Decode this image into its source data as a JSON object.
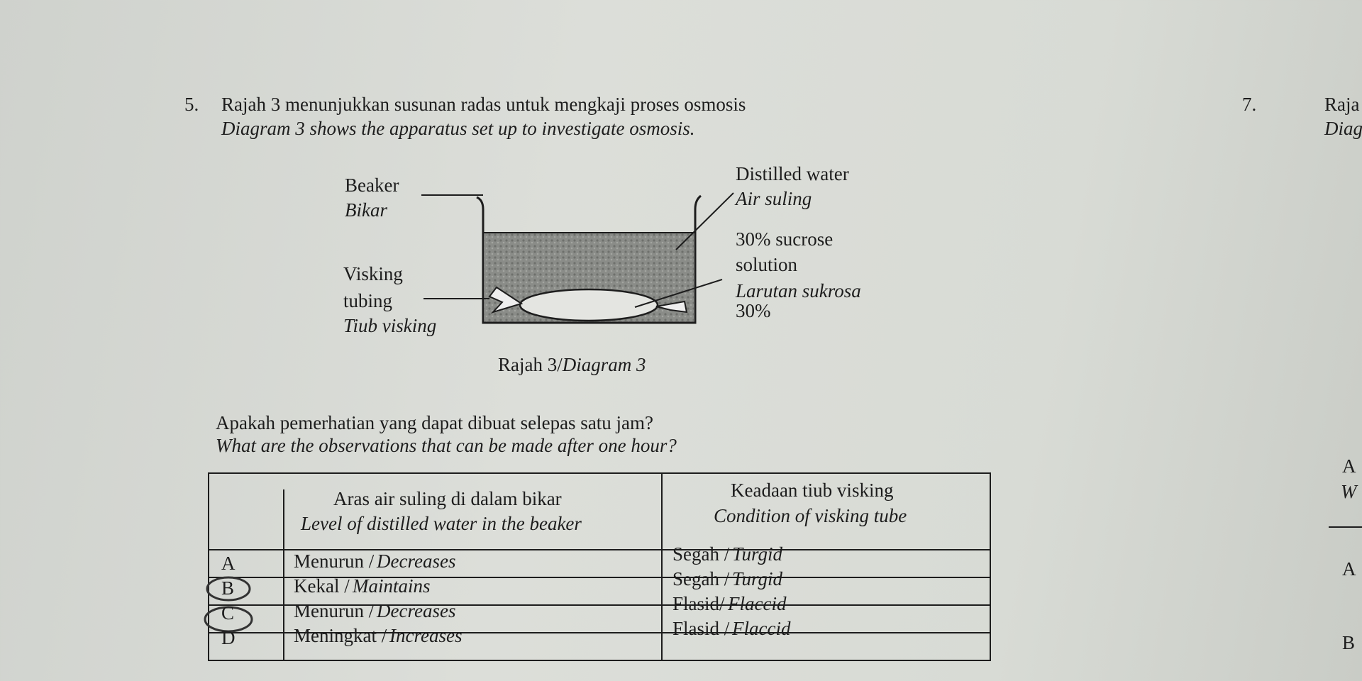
{
  "question": {
    "number": "5.",
    "line_ms": "Rajah 3 menunjukkan susunan radas untuk mengkaji proses osmosis",
    "line_en": "Diagram 3 shows the apparatus set up to investigate osmosis."
  },
  "diagram": {
    "beaker_en": "Beaker",
    "beaker_ms": "Bikar",
    "tubing_en_1": "Visking",
    "tubing_en_2": "tubing",
    "tubing_ms": "Tiub visking",
    "water_en": "Distilled water",
    "water_ms": "Air suling",
    "sucrose_en_1": "30% sucrose",
    "sucrose_en_2": "solution",
    "sucrose_ms_1": "Larutan sukrosa",
    "sucrose_ms_2": "30%",
    "caption_ms": "Rajah 3/",
    "caption_en": "Diagram 3"
  },
  "prompt": {
    "ms": "Apakah pemerhatian yang dapat dibuat selepas satu jam?",
    "en": "What are the observations that can be made after one hour?"
  },
  "table": {
    "header": {
      "level_ms": "Aras air suling di dalam bikar",
      "level_en": "Level of distilled water in the beaker",
      "condition_ms": "Keadaan tiub visking",
      "condition_en": "Condition of visking tube"
    },
    "rows": [
      {
        "option": "A",
        "level_ms": "Menurun /",
        "level_en": "Decreases",
        "condition_ms": "Segah /",
        "condition_en": "Turgid"
      },
      {
        "option": "B",
        "level_ms": "Kekal /",
        "level_en": "Maintains",
        "condition_ms": "Segah /",
        "condition_en": "Turgid"
      },
      {
        "option": "C",
        "level_ms": "Menurun /",
        "level_en": "Decreases",
        "condition_ms": "Flasid/ ",
        "condition_en": "Flaccid"
      },
      {
        "option": "D",
        "level_ms": "Meningkat /",
        "level_en": "Increases",
        "condition_ms": "Flasid /",
        "condition_en": "Flaccid"
      }
    ]
  },
  "next_question": {
    "number": "7.",
    "line_ms": "Raja",
    "line_en": "Diag",
    "fragment_1": "A",
    "fragment_2": "W",
    "option_a": "A",
    "option_b": "B"
  }
}
